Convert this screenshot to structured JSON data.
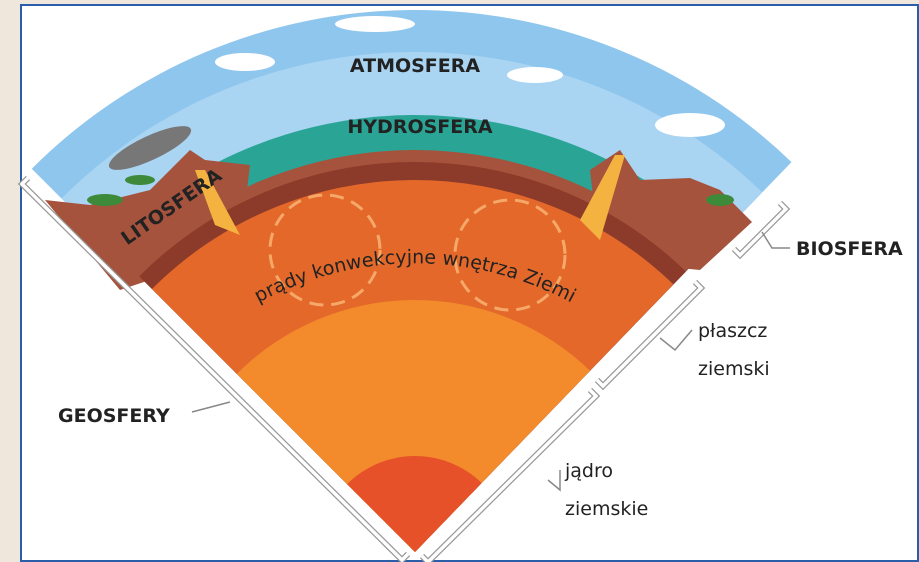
{
  "labels": {
    "atmosphere": "ATMOSFERA",
    "hydrosphere": "HYDROSFERA",
    "lithosphere": "LITOSFERA",
    "convection": "prądy konwekcyjne wnętrza Ziemi",
    "biosphere": "BIOSFERA",
    "mantle": [
      "płaszcz",
      "ziemski"
    ],
    "core": [
      "jądro",
      "ziemskie"
    ],
    "geospheres": "GEOSFERY"
  }
}
